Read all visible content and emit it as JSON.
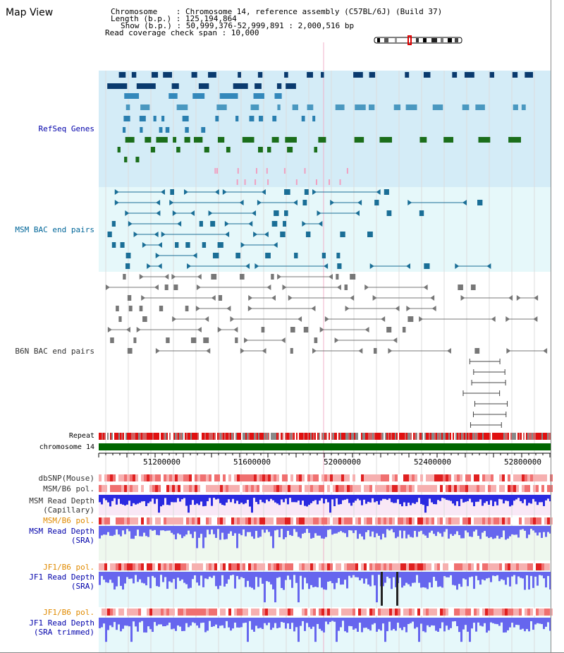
{
  "window": {
    "title": "Map View"
  },
  "header": {
    "chromosome_line": "Chromosome    : Chromosome 14, reference assembly (C57BL/6J) (Build 37)",
    "length_line": "Length (b.p.) : 125,194,864",
    "show_line": "Show (b.p.) : 50,999,376-52,999,891 : 2,000,516 bp",
    "coverage_line": "Read coverage check span : 10,000"
  },
  "tracks": [
    {
      "label": "RefSeq Genes",
      "color": "#0000aa"
    },
    {
      "label": "MSM BAC end pairs",
      "color": "#006699"
    },
    {
      "label": "B6N BAC end pairs",
      "color": "#333333"
    },
    {
      "label": "Repeat",
      "color": "#000000"
    },
    {
      "label": "chromosome 14",
      "color": "#000000"
    },
    {
      "label": "dbSNP(Mouse)",
      "color": "#333333"
    },
    {
      "label": "MSM/B6 pol.",
      "color": "#333333"
    },
    {
      "label": "MSM Read Depth\n(Capillary)",
      "color": "#333333"
    },
    {
      "label": "MSM/B6 pol.",
      "color": "#e08a00"
    },
    {
      "label": "MSM Read Depth\n(SRA)",
      "color": "#0000aa"
    },
    {
      "label": "JF1/B6 pol.",
      "color": "#e08a00"
    },
    {
      "label": "JF1 Read Depth\n(SRA)",
      "color": "#0000aa"
    },
    {
      "label": "JF1/B6 pol.",
      "color": "#e08a00"
    },
    {
      "label": "JF1 Read Depth\n(SRA trimmed)",
      "color": "#0000aa"
    }
  ],
  "axis": {
    "ticks": [
      "51200000",
      "51600000",
      "52000000",
      "52400000",
      "52800000"
    ]
  },
  "colors": {
    "refseq_bg": "#d4ecf7",
    "msm_bac_bg": "#e6f8fa",
    "b6n_bg": "#ffffff",
    "chrom": "#006600",
    "depth": "#6666ee"
  }
}
